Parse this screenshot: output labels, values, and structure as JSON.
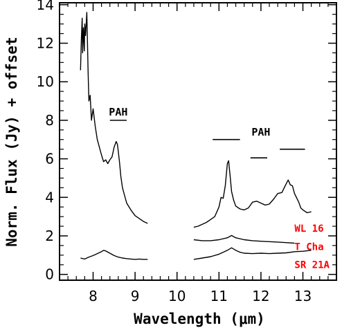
{
  "chart_data": {
    "type": "line",
    "xlabel": "Wavelength (μm)",
    "ylabel": "Norm. Flux (Jy) + offset",
    "xlim": [
      7.2,
      13.8
    ],
    "ylim": [
      -0.3,
      14.1
    ],
    "xticks": [
      "8",
      "9",
      "10",
      "11",
      "12",
      "13"
    ],
    "yticks": [
      "0",
      "2",
      "4",
      "6",
      "8",
      "10",
      "12",
      "14"
    ],
    "grid": false,
    "label_color": "#ff0000",
    "line_color": "#000000",
    "annotations": [
      {
        "text": "PAH",
        "x": 8.6,
        "y": 8.25,
        "bar": [
          8.4,
          8.8,
          8.0
        ]
      },
      {
        "text": "PAH",
        "x": 12.0,
        "y": 7.2,
        "bar": [
          10.85,
          11.5,
          7.0
        ]
      },
      {
        "text": "",
        "bar": [
          11.75,
          12.15,
          6.05
        ]
      },
      {
        "text": "",
        "bar": [
          12.45,
          13.05,
          6.5
        ]
      }
    ],
    "series": [
      {
        "name": "WL 16",
        "label_x": 12.8,
        "label_y": 2.4,
        "segments": [
          [
            [
              7.7,
              10.6
            ],
            [
              7.72,
              12.2
            ],
            [
              7.74,
              13.3
            ],
            [
              7.75,
              11.5
            ],
            [
              7.77,
              12.8
            ],
            [
              7.79,
              11.6
            ],
            [
              7.8,
              13.0
            ],
            [
              7.82,
              12.4
            ],
            [
              7.85,
              13.6
            ],
            [
              7.88,
              10.6
            ],
            [
              7.9,
              9.0
            ],
            [
              7.93,
              9.3
            ],
            [
              7.96,
              8.0
            ],
            [
              8.0,
              8.6
            ],
            [
              8.05,
              7.7
            ],
            [
              8.1,
              7.0
            ],
            [
              8.15,
              6.6
            ],
            [
              8.2,
              6.2
            ],
            [
              8.25,
              5.85
            ],
            [
              8.3,
              5.95
            ],
            [
              8.35,
              5.75
            ],
            [
              8.4,
              5.95
            ],
            [
              8.45,
              6.1
            ],
            [
              8.5,
              6.6
            ],
            [
              8.55,
              6.9
            ],
            [
              8.58,
              6.75
            ],
            [
              8.6,
              6.4
            ],
            [
              8.63,
              5.8
            ],
            [
              8.66,
              5.1
            ],
            [
              8.7,
              4.5
            ],
            [
              8.75,
              4.1
            ],
            [
              8.8,
              3.7
            ],
            [
              8.9,
              3.35
            ],
            [
              9.0,
              3.05
            ],
            [
              9.1,
              2.9
            ],
            [
              9.2,
              2.75
            ],
            [
              9.3,
              2.65
            ]
          ],
          [
            [
              10.4,
              2.45
            ],
            [
              10.5,
              2.5
            ],
            [
              10.6,
              2.6
            ],
            [
              10.7,
              2.7
            ],
            [
              10.8,
              2.85
            ],
            [
              10.9,
              3.0
            ],
            [
              11.0,
              3.5
            ],
            [
              11.05,
              4.0
            ],
            [
              11.1,
              3.95
            ],
            [
              11.15,
              4.6
            ],
            [
              11.2,
              5.75
            ],
            [
              11.23,
              5.9
            ],
            [
              11.27,
              5.0
            ],
            [
              11.3,
              4.3
            ],
            [
              11.35,
              3.85
            ],
            [
              11.4,
              3.55
            ],
            [
              11.5,
              3.4
            ],
            [
              11.6,
              3.35
            ],
            [
              11.7,
              3.45
            ],
            [
              11.8,
              3.75
            ],
            [
              11.9,
              3.8
            ],
            [
              12.0,
              3.7
            ],
            [
              12.1,
              3.6
            ],
            [
              12.2,
              3.65
            ],
            [
              12.3,
              3.9
            ],
            [
              12.4,
              4.2
            ],
            [
              12.5,
              4.25
            ],
            [
              12.6,
              4.7
            ],
            [
              12.65,
              4.9
            ],
            [
              12.7,
              4.65
            ],
            [
              12.75,
              4.6
            ],
            [
              12.8,
              4.2
            ],
            [
              12.9,
              3.75
            ],
            [
              12.95,
              3.45
            ],
            [
              13.0,
              3.35
            ],
            [
              13.1,
              3.2
            ],
            [
              13.2,
              3.25
            ]
          ]
        ]
      },
      {
        "name": "T Cha",
        "label_x": 12.8,
        "label_y": 1.45,
        "segments": [
          [
            [
              10.4,
              1.8
            ],
            [
              10.6,
              1.75
            ],
            [
              10.8,
              1.75
            ],
            [
              11.0,
              1.8
            ],
            [
              11.2,
              1.9
            ],
            [
              11.3,
              2.02
            ],
            [
              11.4,
              1.9
            ],
            [
              11.6,
              1.8
            ],
            [
              11.8,
              1.75
            ],
            [
              12.0,
              1.72
            ],
            [
              12.2,
              1.7
            ],
            [
              12.4,
              1.68
            ],
            [
              12.6,
              1.65
            ],
            [
              12.8,
              1.62
            ]
          ]
        ]
      },
      {
        "name": "SR 21A",
        "label_x": 12.8,
        "label_y": 0.5,
        "segments": [
          [
            [
              7.7,
              0.85
            ],
            [
              7.8,
              0.8
            ],
            [
              7.9,
              0.9
            ],
            [
              8.0,
              0.98
            ],
            [
              8.1,
              1.08
            ],
            [
              8.2,
              1.18
            ],
            [
              8.25,
              1.25
            ],
            [
              8.3,
              1.22
            ],
            [
              8.4,
              1.1
            ],
            [
              8.5,
              0.98
            ],
            [
              8.6,
              0.9
            ],
            [
              8.7,
              0.85
            ],
            [
              8.8,
              0.82
            ],
            [
              8.9,
              0.8
            ],
            [
              9.0,
              0.78
            ],
            [
              9.1,
              0.8
            ],
            [
              9.2,
              0.78
            ],
            [
              9.3,
              0.78
            ]
          ],
          [
            [
              10.4,
              0.78
            ],
            [
              10.6,
              0.85
            ],
            [
              10.8,
              0.92
            ],
            [
              11.0,
              1.05
            ],
            [
              11.1,
              1.15
            ],
            [
              11.2,
              1.25
            ],
            [
              11.3,
              1.38
            ],
            [
              11.4,
              1.25
            ],
            [
              11.5,
              1.15
            ],
            [
              11.6,
              1.1
            ],
            [
              11.8,
              1.08
            ],
            [
              12.0,
              1.1
            ],
            [
              12.2,
              1.08
            ],
            [
              12.4,
              1.1
            ],
            [
              12.6,
              1.12
            ],
            [
              12.8,
              1.18
            ],
            [
              13.0,
              1.2
            ],
            [
              13.2,
              1.25
            ]
          ]
        ]
      }
    ]
  }
}
